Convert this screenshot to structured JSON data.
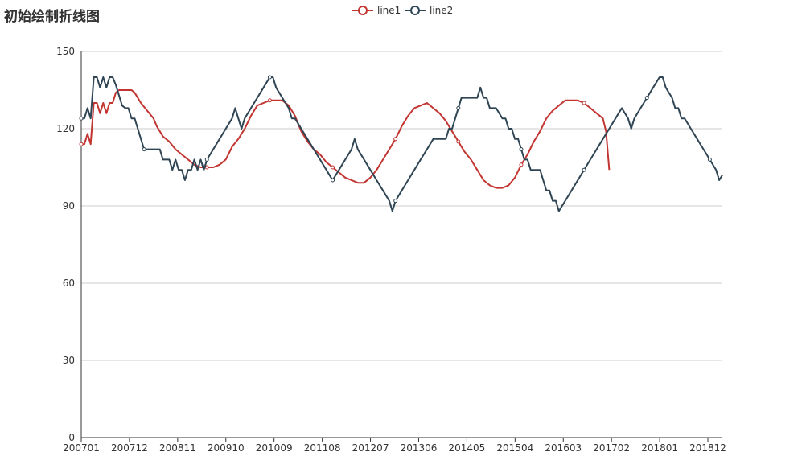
{
  "title": "初始绘制折线图",
  "chart_data": {
    "type": "line",
    "title": "初始绘制折线图",
    "xlabel": "",
    "ylabel": "",
    "ylim": [
      0,
      150
    ],
    "yticks": [
      "0",
      "30",
      "60",
      "90",
      "120",
      "150"
    ],
    "grid": "horizontal",
    "legend_position": "top-center",
    "x_tick_labels": [
      "200701",
      "200712",
      "200811",
      "200910",
      "201009",
      "201108",
      "201207",
      "201306",
      "201405",
      "201504",
      "201603",
      "201702",
      "201801",
      "201812"
    ],
    "series": [
      {
        "name": "line1",
        "color": "#c23531",
        "points": [
          [
            0,
            114
          ],
          [
            1,
            114
          ],
          [
            2,
            118
          ],
          [
            3,
            114
          ],
          [
            4,
            130
          ],
          [
            5,
            130
          ],
          [
            6,
            126
          ],
          [
            7,
            130
          ],
          [
            8,
            126
          ],
          [
            9,
            130
          ],
          [
            10,
            130
          ],
          [
            11,
            134
          ],
          [
            12,
            135
          ],
          [
            14,
            135
          ],
          [
            16,
            135
          ],
          [
            17,
            134
          ],
          [
            19,
            130
          ],
          [
            21,
            127
          ],
          [
            23,
            124
          ],
          [
            24,
            121
          ],
          [
            26,
            117
          ],
          [
            28,
            115
          ],
          [
            30,
            112
          ],
          [
            32,
            110
          ],
          [
            34,
            108
          ],
          [
            36,
            106
          ],
          [
            38,
            105
          ],
          [
            40,
            105
          ],
          [
            42,
            105
          ],
          [
            44,
            106
          ],
          [
            46,
            108
          ],
          [
            48,
            113
          ],
          [
            50,
            116
          ],
          [
            52,
            120
          ],
          [
            54,
            125
          ],
          [
            56,
            129
          ],
          [
            58,
            130
          ],
          [
            60,
            131
          ],
          [
            62,
            131
          ],
          [
            64,
            131
          ],
          [
            66,
            129
          ],
          [
            68,
            125
          ],
          [
            70,
            119
          ],
          [
            72,
            115
          ],
          [
            74,
            112
          ],
          [
            76,
            110
          ],
          [
            78,
            107
          ],
          [
            80,
            105
          ],
          [
            82,
            103
          ],
          [
            84,
            101
          ],
          [
            86,
            100
          ],
          [
            88,
            99
          ],
          [
            90,
            99
          ],
          [
            92,
            101
          ],
          [
            94,
            104
          ],
          [
            96,
            108
          ],
          [
            98,
            112
          ],
          [
            100,
            116
          ],
          [
            102,
            121
          ],
          [
            104,
            125
          ],
          [
            106,
            128
          ],
          [
            108,
            129
          ],
          [
            110,
            130
          ],
          [
            112,
            128
          ],
          [
            114,
            126
          ],
          [
            116,
            123
          ],
          [
            118,
            119
          ],
          [
            120,
            115
          ],
          [
            122,
            111
          ],
          [
            124,
            108
          ],
          [
            126,
            104
          ],
          [
            128,
            100
          ],
          [
            130,
            98
          ],
          [
            132,
            97
          ],
          [
            134,
            97
          ],
          [
            136,
            98
          ],
          [
            138,
            101
          ],
          [
            140,
            106
          ],
          [
            142,
            110
          ],
          [
            144,
            115
          ],
          [
            146,
            119
          ],
          [
            148,
            124
          ],
          [
            150,
            127
          ],
          [
            152,
            129
          ],
          [
            154,
            131
          ],
          [
            156,
            131
          ],
          [
            158,
            131
          ],
          [
            160,
            130
          ],
          [
            162,
            128
          ],
          [
            164,
            126
          ],
          [
            166,
            124
          ],
          [
            167,
            119
          ],
          [
            168,
            104
          ]
        ]
      },
      {
        "name": "line2",
        "color": "#2f4554",
        "points": [
          [
            0,
            124
          ],
          [
            1,
            124
          ],
          [
            2,
            128
          ],
          [
            3,
            124
          ],
          [
            4,
            140
          ],
          [
            5,
            140
          ],
          [
            6,
            136
          ],
          [
            7,
            140
          ],
          [
            8,
            136
          ],
          [
            9,
            140
          ],
          [
            10,
            140
          ],
          [
            11,
            137
          ],
          [
            12,
            133
          ],
          [
            13,
            129
          ],
          [
            14,
            128
          ],
          [
            15,
            128
          ],
          [
            16,
            124
          ],
          [
            17,
            124
          ],
          [
            18,
            120
          ],
          [
            19,
            116
          ],
          [
            20,
            112
          ],
          [
            21,
            112
          ],
          [
            22,
            112
          ],
          [
            23,
            112
          ],
          [
            24,
            112
          ],
          [
            25,
            112
          ],
          [
            26,
            108
          ],
          [
            27,
            108
          ],
          [
            28,
            108
          ],
          [
            29,
            104
          ],
          [
            30,
            108
          ],
          [
            31,
            104
          ],
          [
            32,
            104
          ],
          [
            33,
            100
          ],
          [
            34,
            104
          ],
          [
            35,
            104
          ],
          [
            36,
            108
          ],
          [
            37,
            104
          ],
          [
            38,
            108
          ],
          [
            39,
            104
          ],
          [
            40,
            108
          ],
          [
            42,
            112
          ],
          [
            44,
            116
          ],
          [
            46,
            120
          ],
          [
            48,
            124
          ],
          [
            49,
            128
          ],
          [
            50,
            124
          ],
          [
            51,
            120
          ],
          [
            52,
            124
          ],
          [
            54,
            128
          ],
          [
            56,
            132
          ],
          [
            58,
            136
          ],
          [
            60,
            140
          ],
          [
            61,
            140
          ],
          [
            62,
            136
          ],
          [
            64,
            132
          ],
          [
            66,
            128
          ],
          [
            67,
            124
          ],
          [
            68,
            124
          ],
          [
            70,
            120
          ],
          [
            72,
            116
          ],
          [
            74,
            112
          ],
          [
            76,
            108
          ],
          [
            78,
            104
          ],
          [
            80,
            100
          ],
          [
            82,
            104
          ],
          [
            84,
            108
          ],
          [
            86,
            112
          ],
          [
            87,
            116
          ],
          [
            88,
            112
          ],
          [
            90,
            108
          ],
          [
            92,
            104
          ],
          [
            94,
            100
          ],
          [
            96,
            96
          ],
          [
            98,
            92
          ],
          [
            99,
            88
          ],
          [
            100,
            92
          ],
          [
            102,
            96
          ],
          [
            104,
            100
          ],
          [
            106,
            104
          ],
          [
            108,
            108
          ],
          [
            110,
            112
          ],
          [
            112,
            116
          ],
          [
            114,
            116
          ],
          [
            116,
            116
          ],
          [
            117,
            120
          ],
          [
            118,
            120
          ],
          [
            119,
            124
          ],
          [
            120,
            128
          ],
          [
            121,
            132
          ],
          [
            122,
            132
          ],
          [
            124,
            132
          ],
          [
            126,
            132
          ],
          [
            127,
            136
          ],
          [
            128,
            132
          ],
          [
            129,
            132
          ],
          [
            130,
            128
          ],
          [
            132,
            128
          ],
          [
            134,
            124
          ],
          [
            135,
            124
          ],
          [
            136,
            120
          ],
          [
            137,
            120
          ],
          [
            138,
            116
          ],
          [
            139,
            116
          ],
          [
            140,
            112
          ],
          [
            141,
            108
          ],
          [
            142,
            108
          ],
          [
            143,
            104
          ],
          [
            144,
            104
          ],
          [
            146,
            104
          ],
          [
            147,
            100
          ],
          [
            148,
            96
          ],
          [
            149,
            96
          ],
          [
            150,
            92
          ],
          [
            151,
            92
          ],
          [
            152,
            88
          ],
          [
            154,
            92
          ],
          [
            156,
            96
          ],
          [
            158,
            100
          ],
          [
            160,
            104
          ],
          [
            162,
            108
          ],
          [
            164,
            112
          ],
          [
            166,
            116
          ],
          [
            168,
            120
          ],
          [
            170,
            124
          ],
          [
            172,
            128
          ],
          [
            174,
            124
          ],
          [
            175,
            120
          ],
          [
            176,
            124
          ],
          [
            178,
            128
          ],
          [
            180,
            132
          ],
          [
            182,
            136
          ],
          [
            184,
            140
          ],
          [
            185,
            140
          ],
          [
            186,
            136
          ],
          [
            188,
            132
          ],
          [
            189,
            128
          ],
          [
            190,
            128
          ],
          [
            191,
            124
          ],
          [
            192,
            124
          ],
          [
            194,
            120
          ],
          [
            196,
            116
          ],
          [
            198,
            112
          ],
          [
            200,
            108
          ],
          [
            202,
            104
          ],
          [
            203,
            100
          ],
          [
            204,
            102
          ]
        ]
      }
    ]
  }
}
